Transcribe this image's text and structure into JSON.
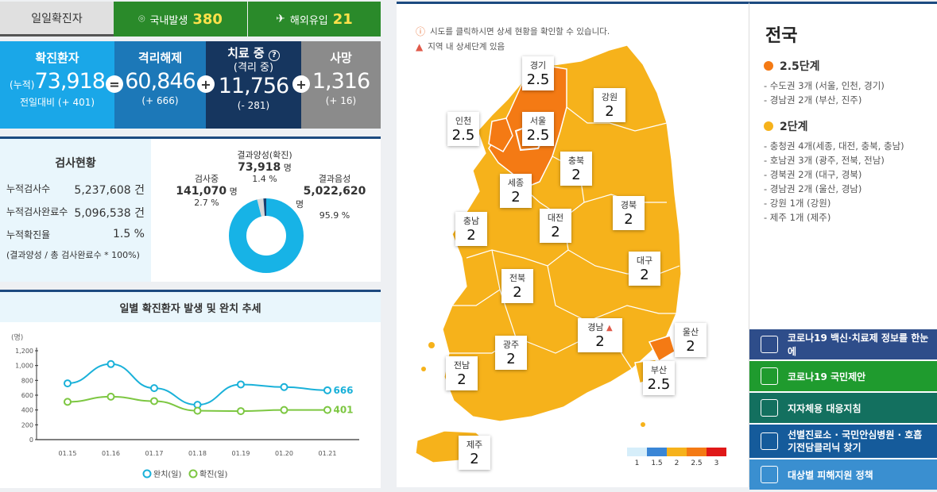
{
  "top": {
    "daily_label": "일일확진자",
    "domestic_label": "국내발생",
    "domestic_value": "380",
    "overseas_label": "해외유입",
    "overseas_value": "21"
  },
  "stats": {
    "confirmed": {
      "title": "확진환자",
      "prefix": "(누적)",
      "value": "73,918",
      "delta": "전일대비 (+ 401)"
    },
    "released": {
      "title": "격리해제",
      "value": "60,846",
      "delta": "(+ 666)"
    },
    "treating": {
      "title": "치료 중",
      "sub": "(격리 중)",
      "value": "11,756",
      "delta": "(- 281)"
    },
    "deaths": {
      "title": "사망",
      "value": "1,316",
      "delta": "(+ 16)"
    },
    "ops": [
      "=",
      "+",
      "+"
    ]
  },
  "tests": {
    "title": "검사현황",
    "rows": [
      {
        "label": "누적검사수",
        "value": "5,237,608 건"
      },
      {
        "label": "누적검사완료수",
        "value": "5,096,538 건"
      },
      {
        "label": "누적확진율",
        "value": "1.5 %"
      }
    ],
    "note": "(결과양성 / 총 검사완료수 * 100%)"
  },
  "donut": {
    "testing_label": "검사중",
    "testing_value": "141,070",
    "testing_unit": "명",
    "testing_pct": "2.7 %",
    "positive_label": "결과양성(확진)",
    "positive_value": "73,918",
    "positive_unit": "명",
    "positive_pct": "1.4 %",
    "negative_label": "결과음성",
    "negative_value": "5,022,620",
    "negative_unit": "명",
    "negative_pct": "95.9 %",
    "colors": {
      "negative": "#17b3e6",
      "testing": "#d8d8d8",
      "positive": "#1c3f6e"
    }
  },
  "chart_data": {
    "type": "line",
    "title": "일별 확진환자 발생 및 완치 추세",
    "ylabel": "(명)",
    "x": [
      "01.15",
      "01.16",
      "01.17",
      "01.18",
      "01.19",
      "01.20",
      "01.21"
    ],
    "y_ticks": [
      "0",
      "200",
      "400",
      "600",
      "800",
      "1,000",
      "1,200"
    ],
    "ylim": [
      0,
      1200
    ],
    "series": [
      {
        "name": "완치(일)",
        "values": [
          760,
          1020,
          695,
          470,
          745,
          710,
          666
        ],
        "color": "#1ab1d9",
        "end_label": "666"
      },
      {
        "name": "확진(일)",
        "values": [
          510,
          580,
          520,
          390,
          385,
          400,
          401
        ],
        "color": "#7dc742",
        "end_label": "401"
      }
    ]
  },
  "map": {
    "info1": "시도를 클릭하시면 상세 현황을 확인할 수 있습니다.",
    "info2": "지역 내 상세단계 있음",
    "regions": [
      {
        "name": "경기",
        "level": "2.5"
      },
      {
        "name": "강원",
        "level": "2"
      },
      {
        "name": "인천",
        "level": "2.5"
      },
      {
        "name": "서울",
        "level": "2.5"
      },
      {
        "name": "충북",
        "level": "2"
      },
      {
        "name": "세종",
        "level": "2"
      },
      {
        "name": "경북",
        "level": "2"
      },
      {
        "name": "대전",
        "level": "2"
      },
      {
        "name": "충남",
        "level": "2"
      },
      {
        "name": "대구",
        "level": "2"
      },
      {
        "name": "전북",
        "level": "2"
      },
      {
        "name": "경남",
        "level": "2"
      },
      {
        "name": "울산",
        "level": "2"
      },
      {
        "name": "광주",
        "level": "2"
      },
      {
        "name": "전남",
        "level": "2"
      },
      {
        "name": "부산",
        "level": "2.5"
      },
      {
        "name": "제주",
        "level": "2"
      }
    ],
    "legend": [
      {
        "label": "1",
        "color": "#d6eefa"
      },
      {
        "label": "1.5",
        "color": "#3a86d6"
      },
      {
        "label": "2",
        "color": "#f6b21b"
      },
      {
        "label": "2.5",
        "color": "#f47a14"
      },
      {
        "label": "3",
        "color": "#e01818"
      }
    ]
  },
  "summary": {
    "title": "전국",
    "levels": [
      {
        "title": "2.5단계",
        "color": "#f47a14",
        "items": [
          "- 수도권 3개 (서울, 인천, 경기)",
          "- 경남권 2개 (부산, 진주)"
        ]
      },
      {
        "title": "2단계",
        "color": "#f6b21b",
        "items": [
          "- 충청권 4개(세종, 대전, 충북, 충남)",
          "- 호남권 3개 (광주, 전북, 전남)",
          "- 경북권 2개 (대구, 경북)",
          "- 경남권 2개 (울산, 경남)",
          "- 강원 1개 (강원)",
          "- 제주 1개 (제주)"
        ]
      }
    ]
  },
  "links": [
    {
      "label": "코로나19 백신·치료제 정보를 한눈에",
      "color": "#2e4d8a"
    },
    {
      "label": "코로나19 국민제안",
      "color": "#1f9b2e"
    },
    {
      "label": "지자체용 대응지침",
      "color": "#13705f"
    },
    {
      "label": "선별진료소 · 국민안심병원 · 호흡기전담클리닉 찾기",
      "color": "#155b9b"
    },
    {
      "label": "대상별 피해지원 정책",
      "color": "#3a8fd0"
    }
  ]
}
